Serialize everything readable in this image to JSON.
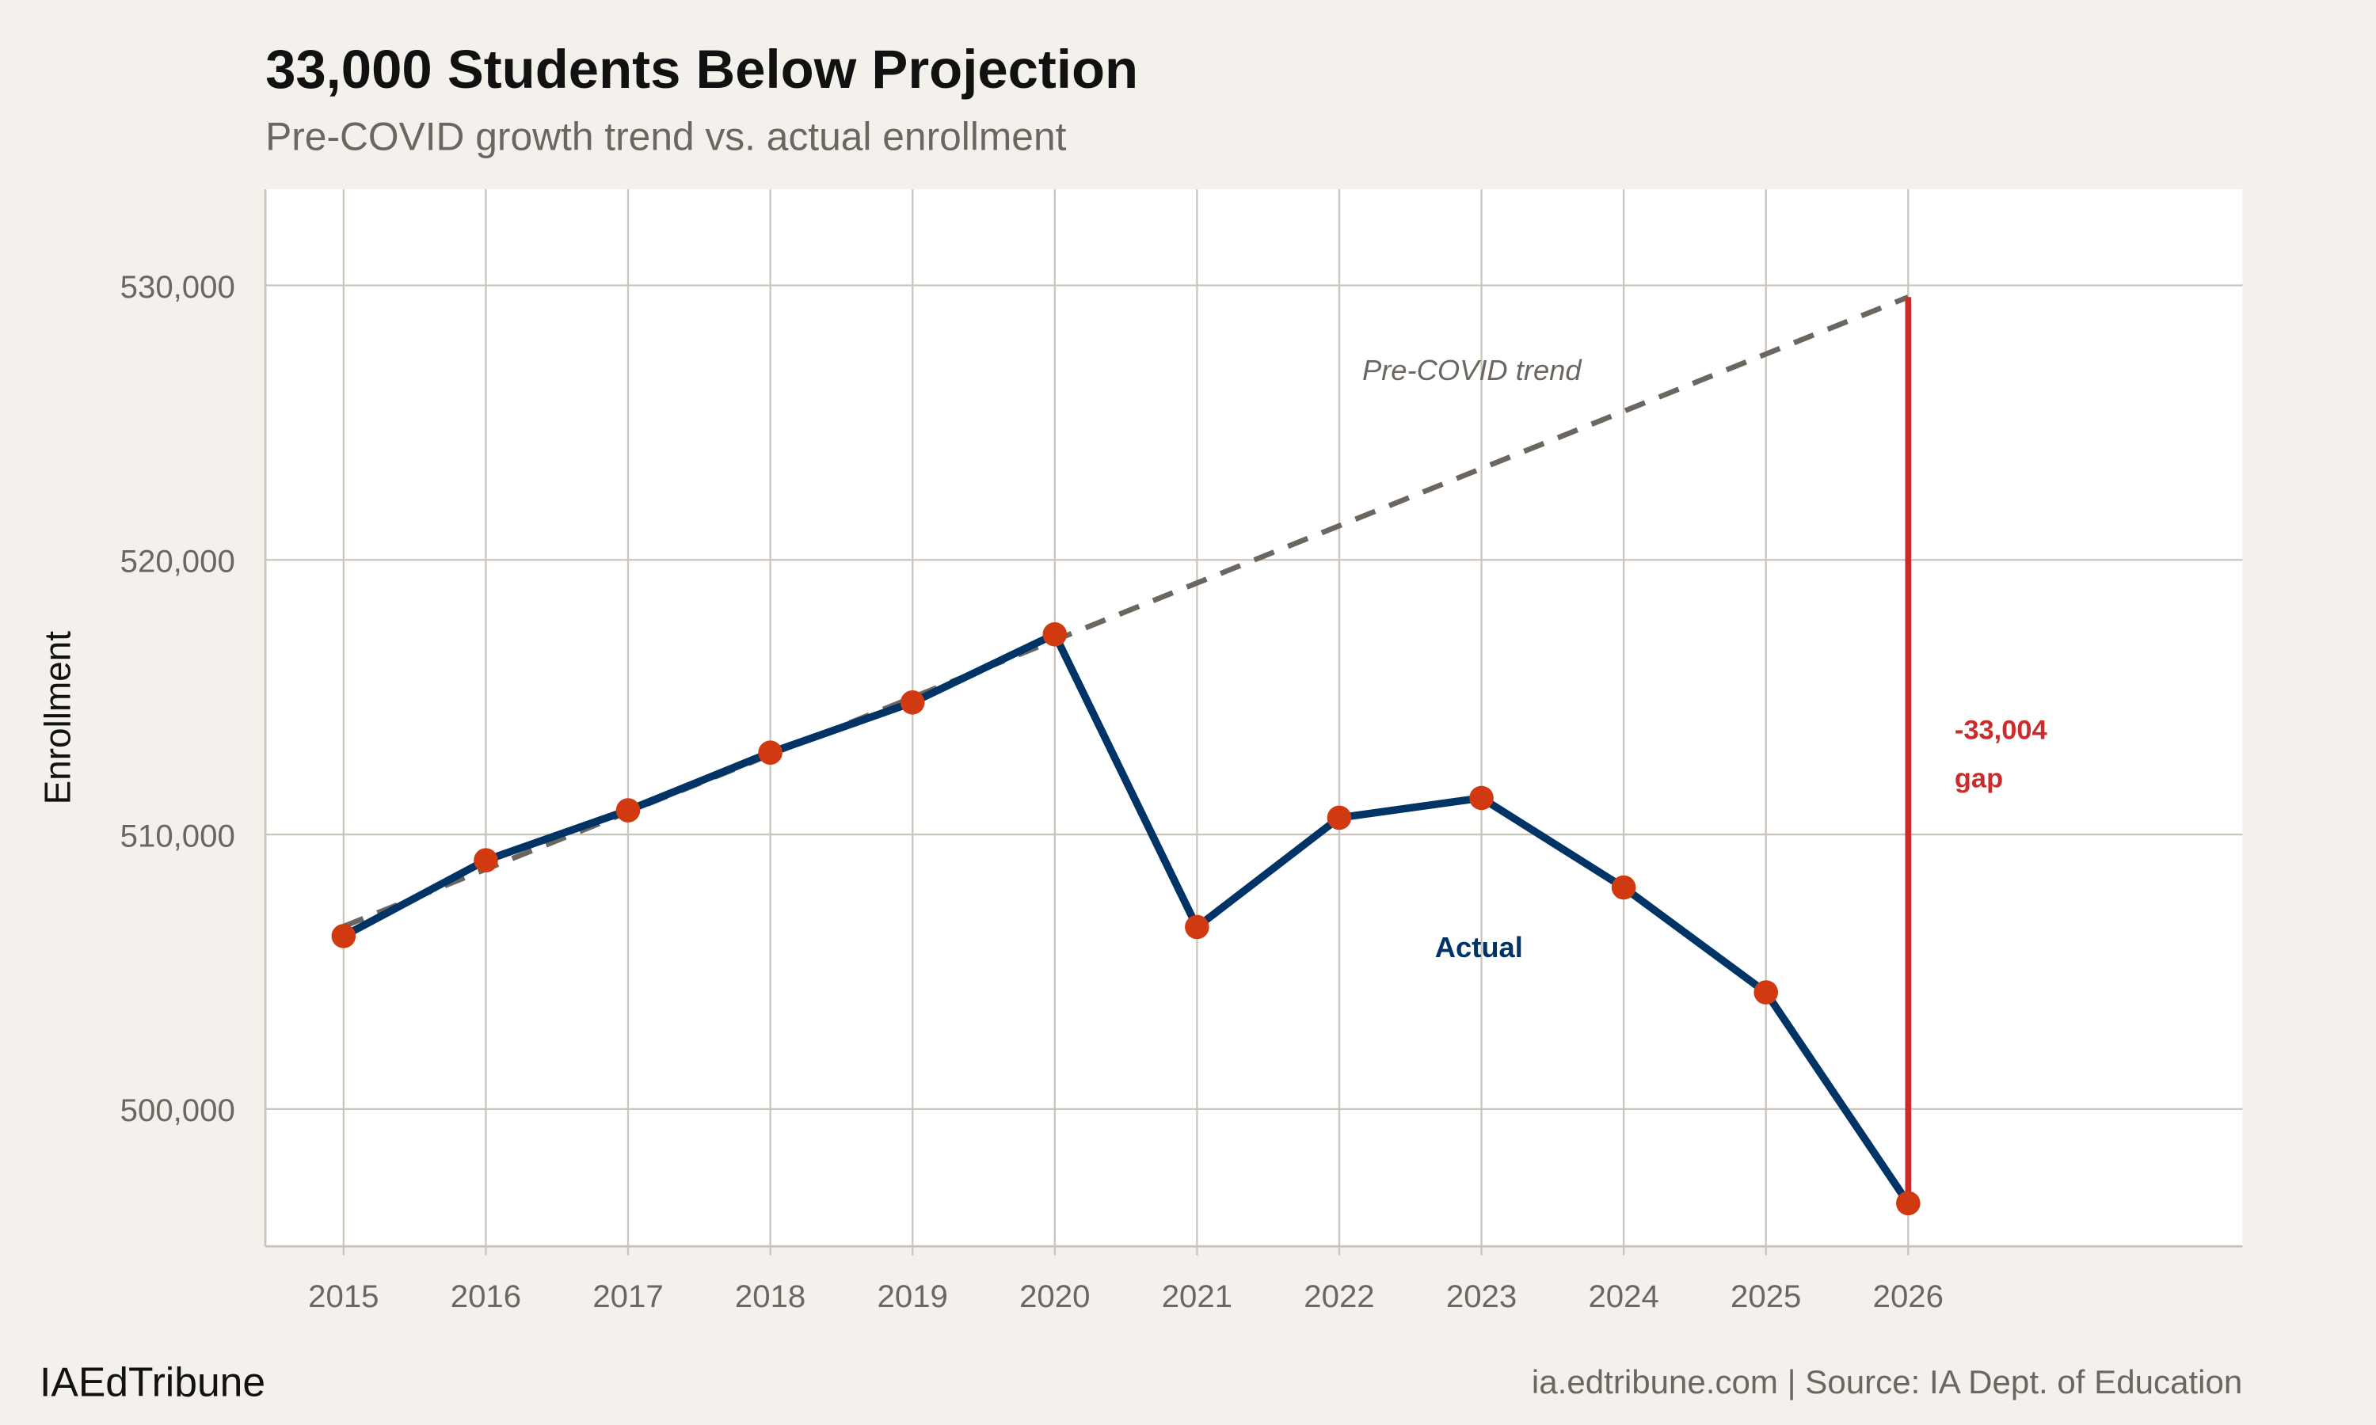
{
  "chart_data": {
    "type": "line",
    "title": "33,000 Students Below Projection",
    "subtitle": "Pre-COVID growth trend vs. actual enrollment",
    "xlabel": "",
    "ylabel": "Enrollment",
    "x": [
      2015,
      2016,
      2017,
      2018,
      2019,
      2020,
      2021,
      2022,
      2023,
      2024,
      2025,
      2026
    ],
    "x_tick_labels": [
      "2015",
      "2016",
      "2017",
      "2018",
      "2019",
      "2020",
      "2021",
      "2022",
      "2023",
      "2024",
      "2025",
      "2026"
    ],
    "y_ticks": [
      500000,
      510000,
      520000,
      530000
    ],
    "y_tick_labels": [
      "500,000",
      "510,000",
      "520,000",
      "530,000"
    ],
    "xlim": [
      2014.45,
      2028.35
    ],
    "ylim": [
      495000,
      533500
    ],
    "grid": true,
    "series": [
      {
        "name": "Actual",
        "style": "solid-with-markers",
        "color": "#003366",
        "marker_color": "#d13a10",
        "values": [
          506300,
          509060,
          510880,
          512980,
          514810,
          517290,
          506630,
          510610,
          511330,
          508070,
          504250,
          496570
        ]
      },
      {
        "name": "Pre-COVID trend",
        "style": "dashed",
        "color": "#6b6660",
        "values": [
          506650,
          508735,
          510820,
          512905,
          514990,
          517075,
          519160,
          521245,
          523330,
          525415,
          527500,
          529574
        ]
      }
    ],
    "annotations": [
      {
        "text": "Pre-COVID trend",
        "style": "italic",
        "color": "#6b6660"
      },
      {
        "text": "Actual",
        "style": "bold",
        "color": "#003366"
      },
      {
        "gap_line": {
          "x": 2026,
          "from": 496570,
          "to": 529574
        },
        "line1": "-33,004",
        "line2": "gap",
        "color": "#cc2b2b"
      }
    ]
  },
  "footer": {
    "brand": "IAEdTribune",
    "source": "ia.edtribune.com | Source: IA Dept. of Education"
  }
}
